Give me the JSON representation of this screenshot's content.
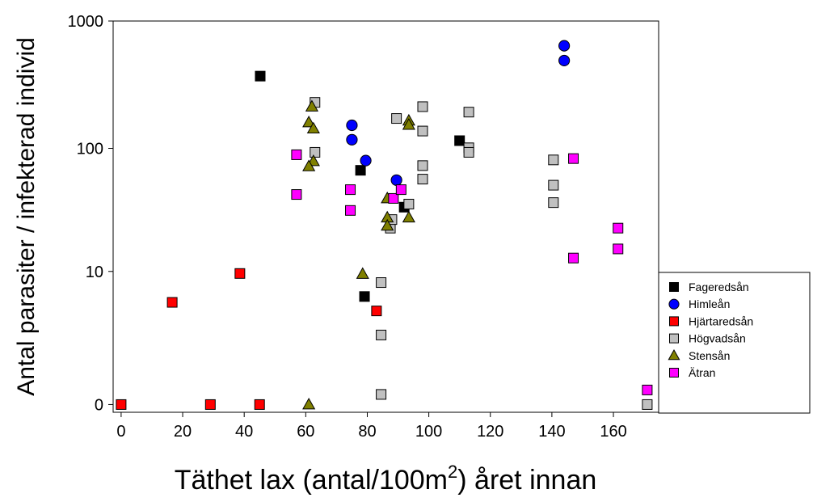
{
  "chart_data": {
    "type": "scatter",
    "ylabel": "Antal parasiter / infekterad individ",
    "xlabel": [
      "Täthet lax (antal/100m",
      "2",
      ") året innan"
    ],
    "xlim": [
      -2.6,
      174.7
    ],
    "xticks": [
      0,
      20,
      40,
      60,
      80,
      100,
      120,
      140,
      160
    ],
    "ylim": [
      -0.13,
      1000
    ],
    "yticks": [
      0,
      10,
      100,
      1000
    ],
    "yscale": "log1p",
    "legend": "right",
    "series": [
      {
        "name": "Fageredsån",
        "color": "#000000",
        "marker": "square",
        "x": [
          45.2,
          77.8,
          79.1,
          92,
          110
        ],
        "values": [
          370,
          67,
          6,
          34,
          115
        ]
      },
      {
        "name": "Himleån",
        "color": "#0000ff",
        "marker": "circle",
        "x": [
          75,
          75,
          79.5,
          89.5,
          144,
          144
        ],
        "values": [
          152,
          117,
          80,
          56,
          640,
          490
        ]
      },
      {
        "name": "Hjärtaredsån",
        "color": "#ff0000",
        "marker": "square",
        "x": [
          0,
          16.6,
          29,
          38.6,
          45,
          83
        ],
        "values": [
          0,
          5.3,
          0,
          9.6,
          0,
          4.4
        ]
      },
      {
        "name": "Högvadsån",
        "color": "#c0c0c0",
        "marker": "square",
        "x": [
          63,
          63,
          84.5,
          84.5,
          84.5,
          87.5,
          88,
          89.5,
          93.5,
          98,
          98,
          98,
          98,
          113,
          113,
          113,
          140.5,
          140.5,
          140.5,
          171
        ],
        "values": [
          230,
          93,
          8,
          2.5,
          0.2,
          23,
          27,
          172,
          36,
          213,
          137,
          73,
          57,
          193,
          101,
          93,
          81,
          51,
          37,
          0
        ]
      },
      {
        "name": "Stensån",
        "color": "#808000",
        "marker": "triangle",
        "x": [
          62,
          61,
          62.5,
          62.5,
          61,
          78.5,
          61,
          86.5,
          86.5,
          86.5,
          93.5,
          93.5,
          93.5
        ],
        "values": [
          213,
          160,
          143,
          79,
          72,
          9.5,
          0,
          40,
          28,
          24,
          165,
          153,
          28
        ]
      },
      {
        "name": "Ätran",
        "color": "#ff00ff",
        "marker": "square",
        "x": [
          57,
          57,
          74.5,
          74.5,
          88.5,
          91,
          147,
          147,
          161.5,
          161.5,
          171
        ],
        "values": [
          89,
          43,
          47,
          32,
          40,
          47,
          83,
          13,
          23,
          15.5,
          0.3
        ]
      }
    ]
  }
}
